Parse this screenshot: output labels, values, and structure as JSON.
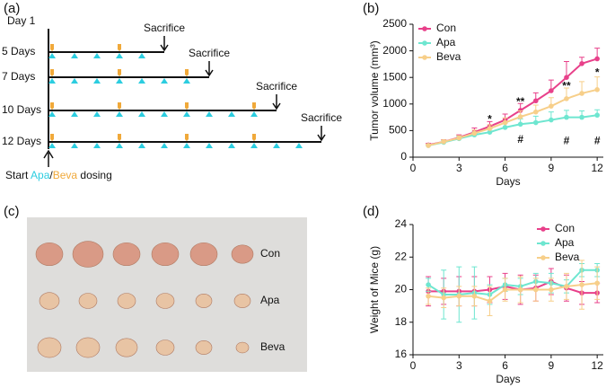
{
  "panel_a": {
    "label": "(a)",
    "day_label": "Day 1",
    "rows": [
      {
        "label": "5 Days",
        "end": "Sacrifice"
      },
      {
        "label": "7 Days",
        "end": "Sacrifice"
      },
      {
        "label": "10 Days",
        "end": "Sacrifice"
      },
      {
        "label": "12 Days",
        "end": "Sacrifice"
      }
    ],
    "start_text": [
      "Start ",
      "Apa",
      "/",
      "Beva",
      " dosing"
    ]
  },
  "panel_c": {
    "label": "(c)",
    "groups": [
      "Con",
      "Apa",
      "Beva"
    ]
  },
  "chart_data": [
    {
      "type": "line",
      "panel_label": "(b)",
      "x_label": "Days",
      "y_label": "Tumor volume (mm³)",
      "x": [
        1,
        2,
        3,
        4,
        5,
        6,
        7,
        8,
        9,
        10,
        11,
        12
      ],
      "xlim": [
        0,
        12.4
      ],
      "xticks": [
        0,
        3,
        6,
        9,
        12
      ],
      "ylim": [
        0,
        2500
      ],
      "yticks": [
        0,
        500,
        1000,
        1500,
        2000,
        2500
      ],
      "error_direction": "up",
      "legend": "upper left",
      "series": [
        {
          "name": "Con",
          "color": "#e8408a",
          "values": [
            230,
            290,
            370,
            470,
            580,
            700,
            880,
            1060,
            1250,
            1500,
            1760,
            1850
          ],
          "errors": [
            30,
            40,
            50,
            80,
            90,
            110,
            130,
            150,
            200,
            300,
            120,
            200
          ]
        },
        {
          "name": "Apa",
          "color": "#6ee6d0",
          "values": [
            220,
            280,
            350,
            420,
            470,
            560,
            620,
            650,
            700,
            750,
            750,
            790
          ],
          "errors": [
            20,
            30,
            40,
            50,
            60,
            80,
            100,
            120,
            150,
            130,
            120,
            100
          ]
        },
        {
          "name": "Beva",
          "color": "#f7cf8a",
          "values": [
            220,
            290,
            360,
            450,
            540,
            650,
            760,
            850,
            960,
            1100,
            1200,
            1270
          ],
          "errors": [
            25,
            35,
            45,
            60,
            70,
            90,
            110,
            130,
            160,
            200,
            220,
            240
          ]
        }
      ],
      "annotations": [
        {
          "text": "*",
          "x": 5,
          "y": 700
        },
        {
          "text": "**",
          "x": 7,
          "y": 1030
        },
        {
          "text": "**",
          "x": 10,
          "y": 1330
        },
        {
          "text": "*",
          "x": 12,
          "y": 1580
        },
        {
          "text": "#",
          "x": 7,
          "y": 320
        },
        {
          "text": "#",
          "x": 10,
          "y": 300
        },
        {
          "text": "#",
          "x": 12,
          "y": 300
        }
      ]
    },
    {
      "type": "line",
      "panel_label": "(d)",
      "x_label": "Days",
      "y_label": "Weight of Mice (g)",
      "x": [
        1,
        2,
        3,
        4,
        5,
        6,
        7,
        8,
        9,
        10,
        11,
        12
      ],
      "xlim": [
        0,
        12.4
      ],
      "xticks": [
        0,
        3,
        6,
        9,
        12
      ],
      "ylim": [
        16,
        24
      ],
      "yticks": [
        16,
        18,
        20,
        22,
        24
      ],
      "error_direction": "both",
      "legend": "upper right",
      "series": [
        {
          "name": "Con",
          "color": "#e8408a",
          "values": [
            19.9,
            19.9,
            19.9,
            19.9,
            20.0,
            20.2,
            20.0,
            20.1,
            20.5,
            20.1,
            19.8,
            19.8
          ],
          "errors": [
            0.9,
            0.8,
            0.9,
            0.9,
            0.8,
            0.8,
            0.9,
            0.8,
            0.8,
            0.8,
            0.7,
            0.6
          ]
        },
        {
          "name": "Apa",
          "color": "#6ee6d0",
          "values": [
            20.3,
            19.7,
            19.7,
            19.8,
            19.7,
            20.3,
            20.2,
            20.5,
            20.4,
            20.2,
            21.2,
            21.2
          ],
          "errors": [
            0.4,
            1.5,
            1.7,
            1.6,
            0.6,
            0.4,
            0.5,
            0.5,
            0.6,
            0.4,
            0.4,
            0.4
          ]
        },
        {
          "name": "Beva",
          "color": "#f7cf8a",
          "values": [
            19.6,
            19.5,
            19.6,
            19.6,
            19.3,
            20.0,
            20.0,
            20.0,
            20.0,
            20.2,
            20.3,
            20.4
          ],
          "errors": [
            0.5,
            0.6,
            0.6,
            0.6,
            0.9,
            0.7,
            0.8,
            0.7,
            0.7,
            0.8,
            1.5,
            1.0
          ]
        }
      ]
    }
  ]
}
